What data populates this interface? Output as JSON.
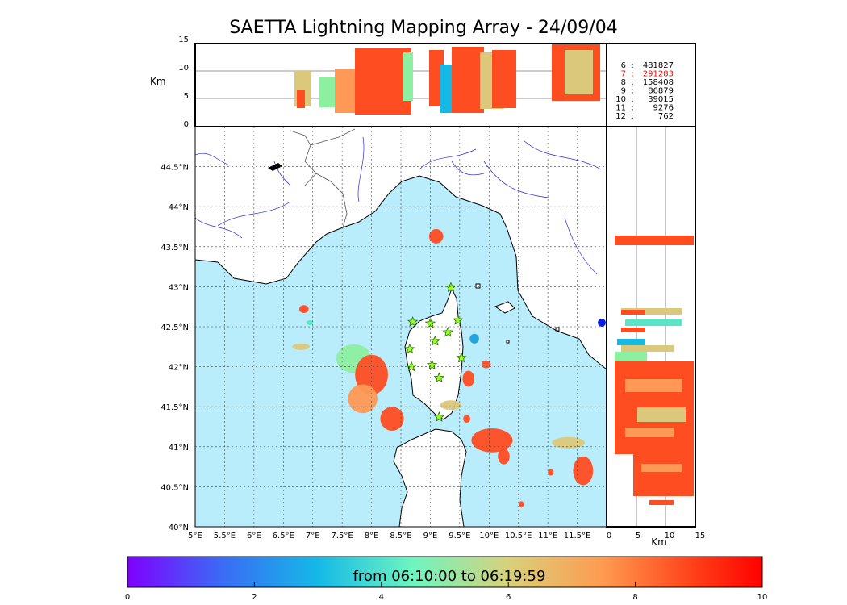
{
  "title": "SAETTA Lightning Mapping Array - 24/09/04",
  "chart_data": {
    "type": "scatter",
    "title": "SAETTA Lightning Mapping Array - 24/09/04",
    "map": {
      "lon_range": [
        5,
        12
      ],
      "lat_range": [
        40,
        45
      ],
      "lon_ticks": [
        "5°E",
        "5.5°E",
        "6°E",
        "6.5°E",
        "7°E",
        "7.5°E",
        "8°E",
        "8.5°E",
        "9°E",
        "9.5°E",
        "10°E",
        "10.5°E",
        "11°E",
        "11.5°E"
      ],
      "lon_tick_values": [
        5,
        5.5,
        6,
        6.5,
        7,
        7.5,
        8,
        8.5,
        9,
        9.5,
        10,
        10.5,
        11,
        11.5
      ],
      "lat_ticks": [
        "40°N",
        "40.5°N",
        "41°N",
        "41.5°N",
        "42°N",
        "42.5°N",
        "43°N",
        "43.5°N",
        "44°N",
        "44.5°N"
      ],
      "lat_tick_values": [
        40,
        40.5,
        41,
        41.5,
        42,
        42.5,
        43,
        43.5,
        44,
        44.5
      ],
      "grid": "dotted",
      "sea_color": "#b9edfb",
      "stations": [
        {
          "lon": 9.35,
          "lat": 42.99
        },
        {
          "lon": 8.7,
          "lat": 42.56
        },
        {
          "lon": 9.0,
          "lat": 42.54
        },
        {
          "lon": 9.47,
          "lat": 42.58
        },
        {
          "lon": 9.3,
          "lat": 42.43
        },
        {
          "lon": 9.08,
          "lat": 42.32
        },
        {
          "lon": 8.65,
          "lat": 42.22
        },
        {
          "lon": 9.53,
          "lat": 42.11
        },
        {
          "lon": 9.03,
          "lat": 42.02
        },
        {
          "lon": 8.68,
          "lat": 42.0
        },
        {
          "lon": 9.15,
          "lat": 41.86
        },
        {
          "lon": 9.15,
          "lat": 41.37
        }
      ],
      "storms": [
        {
          "lon": 9.1,
          "lat": 43.63,
          "rx": 0.12,
          "ry": 0.09,
          "color": "#ff4d22"
        },
        {
          "lon": 6.85,
          "lat": 42.72,
          "rx": 0.08,
          "ry": 0.05,
          "color": "#ff4d22"
        },
        {
          "lon": 6.95,
          "lat": 42.55,
          "rx": 0.06,
          "ry": 0.03,
          "color": "#59e6c8"
        },
        {
          "lon": 6.8,
          "lat": 42.25,
          "rx": 0.15,
          "ry": 0.04,
          "color": "#dcc87a"
        },
        {
          "lon": 7.7,
          "lat": 42.1,
          "rx": 0.3,
          "ry": 0.18,
          "color": "#8cf0a0"
        },
        {
          "lon": 8.0,
          "lat": 41.9,
          "rx": 0.28,
          "ry": 0.25,
          "color": "#ff4d22"
        },
        {
          "lon": 7.85,
          "lat": 41.6,
          "rx": 0.25,
          "ry": 0.18,
          "color": "#ff9955"
        },
        {
          "lon": 8.35,
          "lat": 41.35,
          "rx": 0.2,
          "ry": 0.15,
          "color": "#ff4d22"
        },
        {
          "lon": 9.35,
          "lat": 41.52,
          "rx": 0.18,
          "ry": 0.06,
          "color": "#dcc87a"
        },
        {
          "lon": 9.65,
          "lat": 41.85,
          "rx": 0.1,
          "ry": 0.1,
          "color": "#ff4d22"
        },
        {
          "lon": 9.75,
          "lat": 42.35,
          "rx": 0.08,
          "ry": 0.06,
          "color": "#1ea0dc"
        },
        {
          "lon": 9.95,
          "lat": 42.03,
          "rx": 0.08,
          "ry": 0.05,
          "color": "#ff4d22"
        },
        {
          "lon": 9.62,
          "lat": 41.35,
          "rx": 0.06,
          "ry": 0.05,
          "color": "#ff4d22"
        },
        {
          "lon": 10.05,
          "lat": 41.08,
          "rx": 0.35,
          "ry": 0.15,
          "color": "#ff4d22"
        },
        {
          "lon": 10.25,
          "lat": 40.88,
          "rx": 0.1,
          "ry": 0.1,
          "color": "#ff4d22"
        },
        {
          "lon": 11.35,
          "lat": 41.05,
          "rx": 0.28,
          "ry": 0.07,
          "color": "#dcc87a"
        },
        {
          "lon": 11.6,
          "lat": 40.7,
          "rx": 0.17,
          "ry": 0.18,
          "color": "#ff4d22"
        },
        {
          "lon": 10.55,
          "lat": 40.28,
          "rx": 0.04,
          "ry": 0.04,
          "color": "#ff4d22"
        },
        {
          "lon": 11.05,
          "lat": 40.68,
          "rx": 0.05,
          "ry": 0.04,
          "color": "#ff4d22"
        }
      ]
    },
    "altitude_panels": {
      "ylabel": "Km",
      "xlabel": "Km",
      "range": [
        0,
        15
      ],
      "ticks": [
        0,
        5,
        10,
        15
      ]
    },
    "counts": [
      {
        "label": "6",
        "sep": ":",
        "value": "481827",
        "color": "#000000"
      },
      {
        "label": "7",
        "sep": ":",
        "value": "291283",
        "color": "#ff0000"
      },
      {
        "label": "8",
        "sep": ":",
        "value": "158408",
        "color": "#000000"
      },
      {
        "label": "9",
        "sep": ":",
        "value": "86879",
        "color": "#000000"
      },
      {
        "label": "10",
        "sep": ":",
        "value": "39015",
        "color": "#000000"
      },
      {
        "label": "11",
        "sep": ":",
        "value": "9276",
        "color": "#000000"
      },
      {
        "label": "12",
        "sep": ":",
        "value": "762",
        "color": "#000000"
      }
    ],
    "colorbar": {
      "label": "from 06:10:00 to 06:19:59",
      "range": [
        0,
        10
      ],
      "ticks": [
        0,
        2,
        4,
        6,
        8,
        10
      ],
      "colors": [
        "#7f00ff",
        "#3a6cf5",
        "#14b9e6",
        "#6ef5c0",
        "#d8d17c",
        "#ff9a4f",
        "#ff3b16",
        "#ff0000"
      ]
    }
  }
}
